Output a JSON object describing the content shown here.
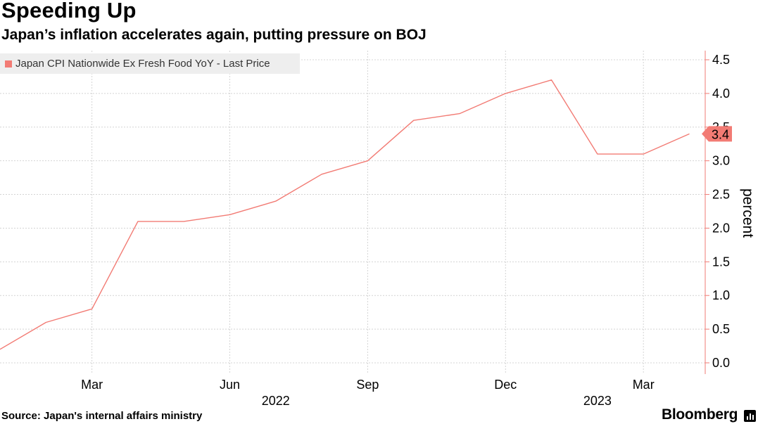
{
  "header": {
    "title": "Speeding Up",
    "subtitle": "Japan’s inflation accelerates again, putting pressure on BOJ"
  },
  "footer": {
    "source": "Source: Japan's internal affairs ministry",
    "brand": "Bloomberg"
  },
  "colors": {
    "series": "#f27b74",
    "grid": "#d4d4d4",
    "legend_bg": "#eeeeee"
  },
  "chart_data": {
    "type": "line",
    "title": "Speeding Up",
    "subtitle": "Japan’s inflation accelerates again, putting pressure on BOJ",
    "ylabel": "percent",
    "xlabel": "",
    "ylim": [
      0.0,
      4.5
    ],
    "y_ticks": [
      "0.0",
      "0.5",
      "1.0",
      "1.5",
      "2.0",
      "2.5",
      "3.0",
      "3.5",
      "4.0",
      "4.5"
    ],
    "x_ticks": [
      {
        "label": "Mar",
        "date": "2022-03"
      },
      {
        "label": "Jun",
        "date": "2022-06"
      },
      {
        "label": "Sep",
        "date": "2022-09"
      },
      {
        "label": "Dec",
        "date": "2022-12"
      },
      {
        "label": "Mar",
        "date": "2023-03"
      }
    ],
    "year_labels": [
      {
        "label": "2022",
        "date": "2022-07"
      },
      {
        "label": "2023",
        "date": "2023-02"
      }
    ],
    "grid": true,
    "legend_position": "top-left",
    "series": [
      {
        "name": "Japan CPI Nationwide Ex Fresh Food YoY - Last Price",
        "x": [
          "2022-01",
          "2022-02",
          "2022-03",
          "2022-04",
          "2022-05",
          "2022-06",
          "2022-07",
          "2022-08",
          "2022-09",
          "2022-10",
          "2022-11",
          "2022-12",
          "2023-01",
          "2023-02",
          "2023-03",
          "2023-04"
        ],
        "values": [
          0.2,
          0.6,
          0.8,
          2.1,
          2.1,
          2.2,
          2.4,
          2.8,
          3.0,
          3.6,
          3.7,
          4.0,
          4.2,
          3.1,
          3.1,
          3.4
        ],
        "last_value_label": "3.4"
      }
    ]
  }
}
